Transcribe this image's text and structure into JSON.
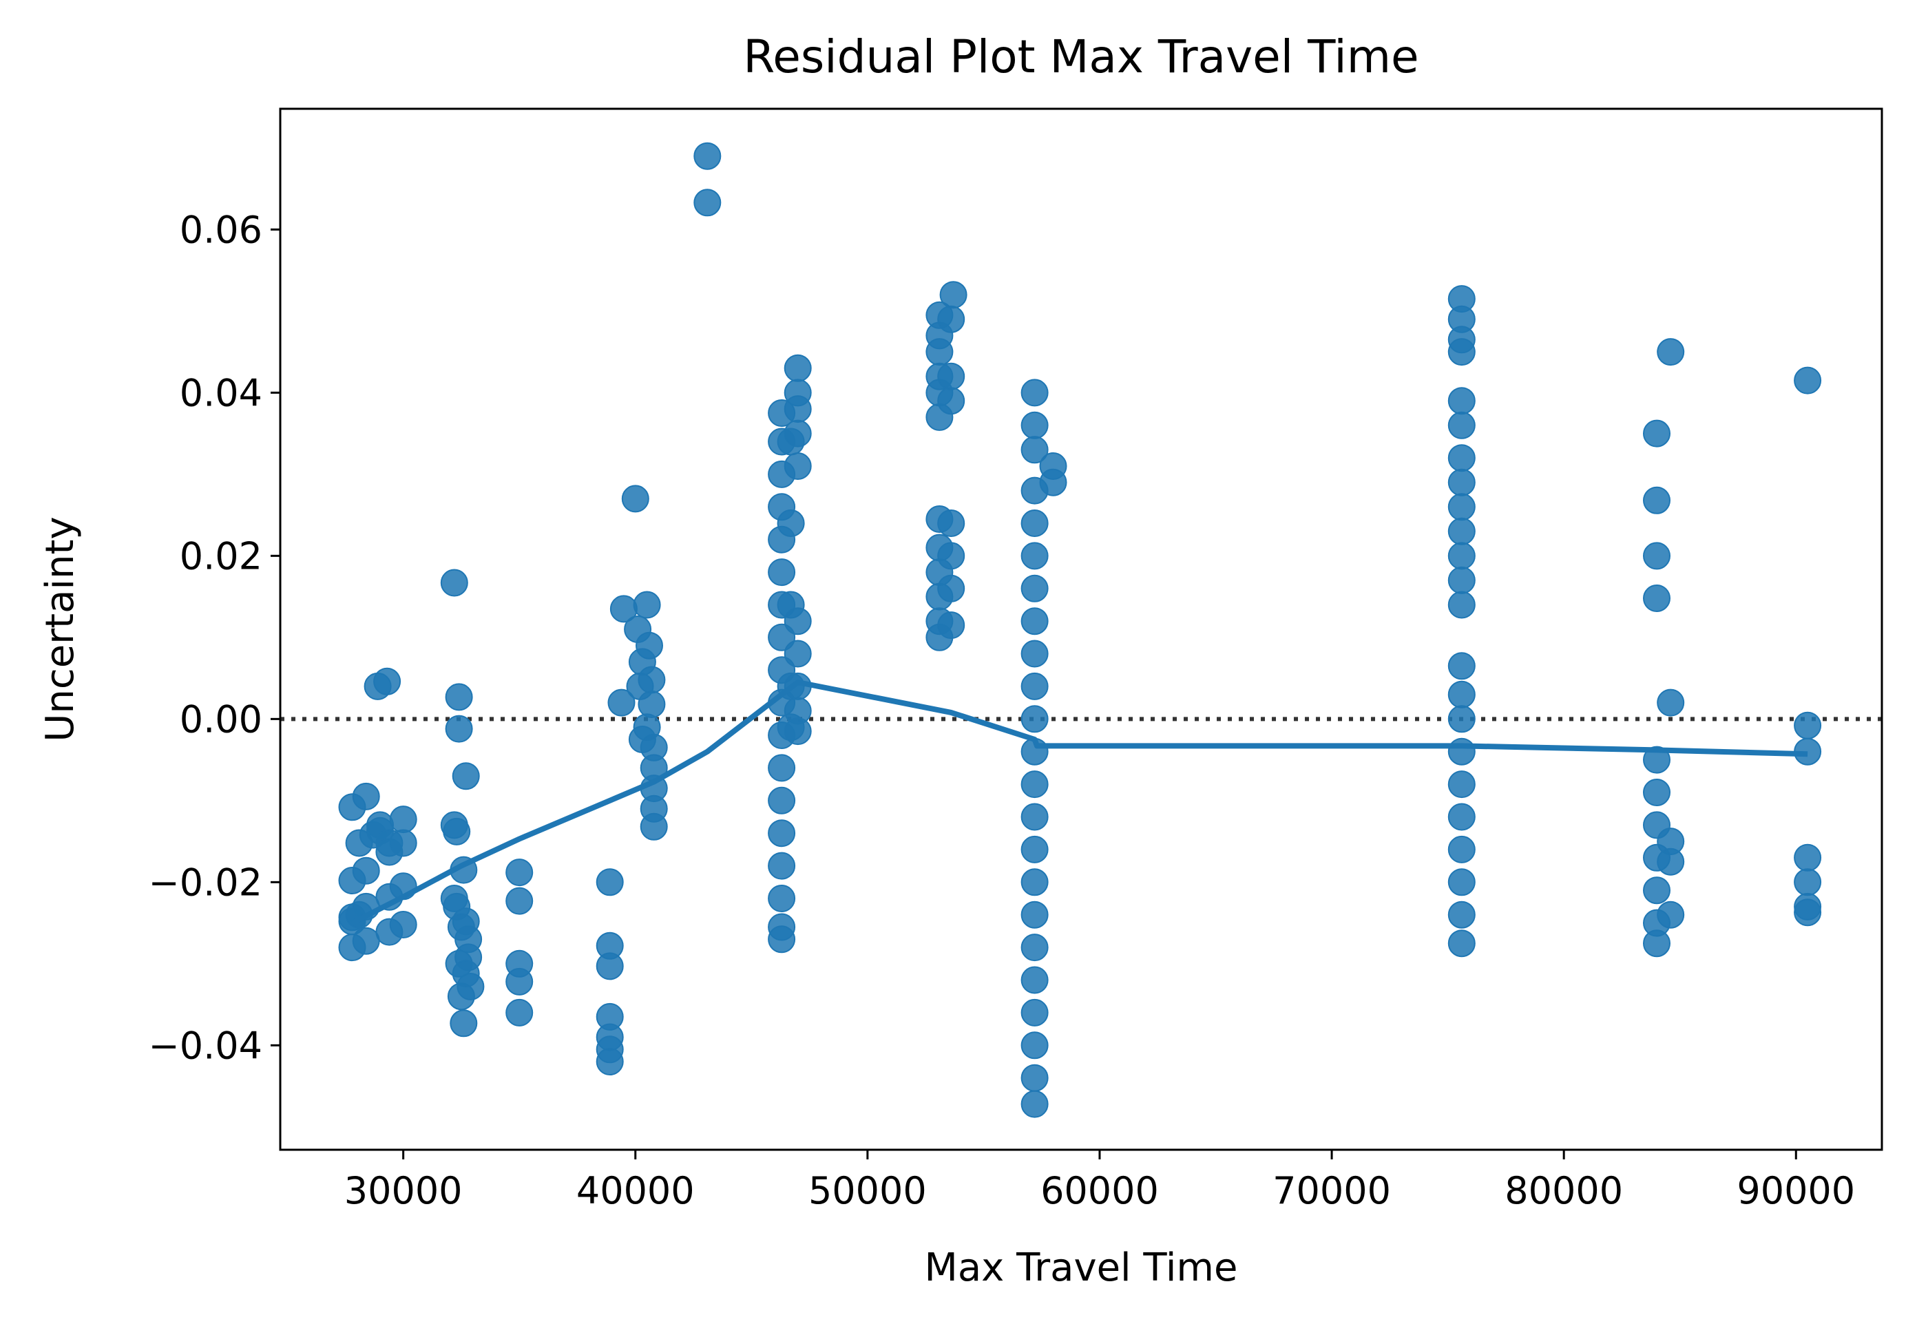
{
  "chart_data": {
    "type": "scatter",
    "title": "Residual Plot Max Travel Time",
    "xlabel": "Max Travel Time",
    "ylabel": "Uncertainty",
    "xlim": [
      24700,
      93700
    ],
    "ylim": [
      -0.0528,
      0.0748
    ],
    "x_ticks": [
      30000,
      40000,
      50000,
      60000,
      70000,
      80000,
      90000
    ],
    "x_tick_labels": [
      "30000",
      "40000",
      "50000",
      "60000",
      "70000",
      "80000",
      "90000"
    ],
    "y_ticks": [
      -0.04,
      -0.02,
      0.0,
      0.02,
      0.04,
      0.06
    ],
    "y_tick_labels": [
      "−0.04",
      "−0.02",
      "0.00",
      "0.02",
      "0.04",
      "0.06"
    ],
    "grid": false,
    "reference_line": {
      "y": 0,
      "style": "dotted",
      "color": "#333333"
    },
    "series": [
      {
        "kind": "points",
        "color": "#1f77b4",
        "points": [
          [
            27800,
            -0.0108
          ],
          [
            27800,
            -0.0198
          ],
          [
            27800,
            -0.0243
          ],
          [
            27800,
            -0.0248
          ],
          [
            27800,
            -0.028
          ],
          [
            28100,
            -0.0152
          ],
          [
            28100,
            -0.024
          ],
          [
            28400,
            -0.0095
          ],
          [
            28400,
            -0.0186
          ],
          [
            28400,
            -0.023
          ],
          [
            28400,
            -0.0272
          ],
          [
            28700,
            -0.0142
          ],
          [
            28900,
            0.004
          ],
          [
            29000,
            -0.013
          ],
          [
            29000,
            -0.0137
          ],
          [
            29300,
            0.0046
          ],
          [
            29400,
            -0.0152
          ],
          [
            29400,
            -0.0163
          ],
          [
            29400,
            -0.0218
          ],
          [
            29400,
            -0.0261
          ],
          [
            30000,
            -0.0123
          ],
          [
            30000,
            -0.0152
          ],
          [
            30000,
            -0.0205
          ],
          [
            30000,
            -0.0252
          ],
          [
            32200,
            0.0167
          ],
          [
            32200,
            -0.013
          ],
          [
            32400,
            0.0027
          ],
          [
            32400,
            -0.0012
          ],
          [
            32300,
            -0.0138
          ],
          [
            32200,
            -0.022
          ],
          [
            32300,
            -0.023
          ],
          [
            32400,
            -0.03
          ],
          [
            32500,
            -0.034
          ],
          [
            32600,
            -0.0373
          ],
          [
            32600,
            -0.0185
          ],
          [
            32700,
            -0.007
          ],
          [
            32700,
            -0.0248
          ],
          [
            32800,
            -0.027
          ],
          [
            32800,
            -0.0292
          ],
          [
            32900,
            -0.0328
          ],
          [
            32700,
            -0.0312
          ],
          [
            32500,
            -0.0255
          ],
          [
            35000,
            -0.0188
          ],
          [
            35000,
            -0.0223
          ],
          [
            35000,
            -0.03
          ],
          [
            35000,
            -0.0322
          ],
          [
            35000,
            -0.036
          ],
          [
            38900,
            -0.02
          ],
          [
            38900,
            -0.0278
          ],
          [
            38900,
            -0.0303
          ],
          [
            38900,
            -0.0365
          ],
          [
            38900,
            -0.039
          ],
          [
            38900,
            -0.0405
          ],
          [
            38900,
            -0.042
          ],
          [
            39400,
            0.002
          ],
          [
            39500,
            0.0135
          ],
          [
            40000,
            0.027
          ],
          [
            40100,
            0.011
          ],
          [
            40200,
            0.004
          ],
          [
            40300,
            -0.0025
          ],
          [
            40500,
            0.014
          ],
          [
            40600,
            0.009
          ],
          [
            40700,
            0.0048
          ],
          [
            40700,
            0.0018
          ],
          [
            40800,
            -0.0035
          ],
          [
            40800,
            -0.006
          ],
          [
            40800,
            -0.0085
          ],
          [
            40800,
            -0.011
          ],
          [
            40800,
            -0.0132
          ],
          [
            40500,
            -0.001
          ],
          [
            40300,
            0.007
          ],
          [
            43100,
            0.069
          ],
          [
            43100,
            0.0633
          ],
          [
            46300,
            0.0375
          ],
          [
            46300,
            0.034
          ],
          [
            46300,
            0.03
          ],
          [
            46300,
            0.026
          ],
          [
            46300,
            0.022
          ],
          [
            46300,
            0.018
          ],
          [
            46300,
            0.014
          ],
          [
            46300,
            0.01
          ],
          [
            46300,
            0.006
          ],
          [
            46300,
            0.002
          ],
          [
            46300,
            -0.002
          ],
          [
            46300,
            -0.006
          ],
          [
            46300,
            -0.01
          ],
          [
            46300,
            -0.014
          ],
          [
            46300,
            -0.018
          ],
          [
            46300,
            -0.022
          ],
          [
            46300,
            -0.0255
          ],
          [
            46300,
            -0.027
          ],
          [
            46700,
            0.034
          ],
          [
            46700,
            0.024
          ],
          [
            46700,
            0.014
          ],
          [
            46700,
            0.004
          ],
          [
            46700,
            -0.001
          ],
          [
            47000,
            0.043
          ],
          [
            47000,
            0.04
          ],
          [
            47000,
            0.038
          ],
          [
            47000,
            0.035
          ],
          [
            47000,
            0.031
          ],
          [
            47000,
            0.012
          ],
          [
            47000,
            0.008
          ],
          [
            47000,
            0.004
          ],
          [
            47000,
            0.001
          ],
          [
            47000,
            -0.0015
          ],
          [
            53100,
            0.0495
          ],
          [
            53100,
            0.047
          ],
          [
            53100,
            0.045
          ],
          [
            53100,
            0.042
          ],
          [
            53100,
            0.04
          ],
          [
            53100,
            0.037
          ],
          [
            53100,
            0.0245
          ],
          [
            53100,
            0.021
          ],
          [
            53100,
            0.018
          ],
          [
            53100,
            0.015
          ],
          [
            53100,
            0.012
          ],
          [
            53100,
            0.01
          ],
          [
            53600,
            0.049
          ],
          [
            53600,
            0.042
          ],
          [
            53600,
            0.039
          ],
          [
            53600,
            0.024
          ],
          [
            53600,
            0.02
          ],
          [
            53600,
            0.016
          ],
          [
            53600,
            0.0115
          ],
          [
            53700,
            0.052
          ],
          [
            57200,
            0.04
          ],
          [
            57200,
            0.036
          ],
          [
            57200,
            0.033
          ],
          [
            57200,
            0.028
          ],
          [
            57200,
            0.024
          ],
          [
            57200,
            0.02
          ],
          [
            57200,
            0.016
          ],
          [
            57200,
            0.012
          ],
          [
            57200,
            0.008
          ],
          [
            57200,
            0.004
          ],
          [
            57200,
            0.0
          ],
          [
            57200,
            -0.004
          ],
          [
            57200,
            -0.008
          ],
          [
            57200,
            -0.012
          ],
          [
            57200,
            -0.016
          ],
          [
            57200,
            -0.02
          ],
          [
            57200,
            -0.024
          ],
          [
            57200,
            -0.028
          ],
          [
            57200,
            -0.032
          ],
          [
            57200,
            -0.036
          ],
          [
            57200,
            -0.04
          ],
          [
            57200,
            -0.044
          ],
          [
            57200,
            -0.0472
          ],
          [
            58000,
            0.031
          ],
          [
            58000,
            0.029
          ],
          [
            75600,
            0.0515
          ],
          [
            75600,
            0.049
          ],
          [
            75600,
            0.0465
          ],
          [
            75600,
            0.045
          ],
          [
            75600,
            0.039
          ],
          [
            75600,
            0.036
          ],
          [
            75600,
            0.032
          ],
          [
            75600,
            0.029
          ],
          [
            75600,
            0.026
          ],
          [
            75600,
            0.023
          ],
          [
            75600,
            0.02
          ],
          [
            75600,
            0.017
          ],
          [
            75600,
            0.014
          ],
          [
            75600,
            0.0065
          ],
          [
            75600,
            0.003
          ],
          [
            75600,
            0.0
          ],
          [
            75600,
            -0.004
          ],
          [
            75600,
            -0.008
          ],
          [
            75600,
            -0.012
          ],
          [
            75600,
            -0.016
          ],
          [
            75600,
            -0.02
          ],
          [
            75600,
            -0.024
          ],
          [
            75600,
            -0.0275
          ],
          [
            84000,
            0.035
          ],
          [
            84000,
            0.0268
          ],
          [
            84000,
            0.02
          ],
          [
            84000,
            0.0148
          ],
          [
            84000,
            -0.005
          ],
          [
            84000,
            -0.009
          ],
          [
            84000,
            -0.013
          ],
          [
            84000,
            -0.017
          ],
          [
            84000,
            -0.021
          ],
          [
            84000,
            -0.025
          ],
          [
            84000,
            -0.0275
          ],
          [
            84600,
            0.045
          ],
          [
            84600,
            0.002
          ],
          [
            84600,
            -0.015
          ],
          [
            84600,
            -0.0175
          ],
          [
            84600,
            -0.024
          ],
          [
            90500,
            0.0415
          ],
          [
            90500,
            -0.0008
          ],
          [
            90500,
            -0.004
          ],
          [
            90500,
            -0.017
          ],
          [
            90500,
            -0.02
          ],
          [
            90500,
            -0.023
          ],
          [
            90500,
            -0.0237
          ]
        ]
      },
      {
        "kind": "lowess-line",
        "color": "#1f77b4",
        "points": [
          [
            27800,
            -0.025
          ],
          [
            30000,
            -0.0218
          ],
          [
            32500,
            -0.018
          ],
          [
            35000,
            -0.0147
          ],
          [
            38900,
            -0.01
          ],
          [
            40800,
            -0.0077
          ],
          [
            43100,
            -0.004
          ],
          [
            46300,
            0.003
          ],
          [
            47000,
            0.0045
          ],
          [
            53600,
            0.0008
          ],
          [
            57200,
            -0.0025
          ],
          [
            57300,
            -0.0033
          ],
          [
            75600,
            -0.0033
          ],
          [
            84000,
            -0.0038
          ],
          [
            90500,
            -0.0043
          ]
        ]
      }
    ]
  }
}
